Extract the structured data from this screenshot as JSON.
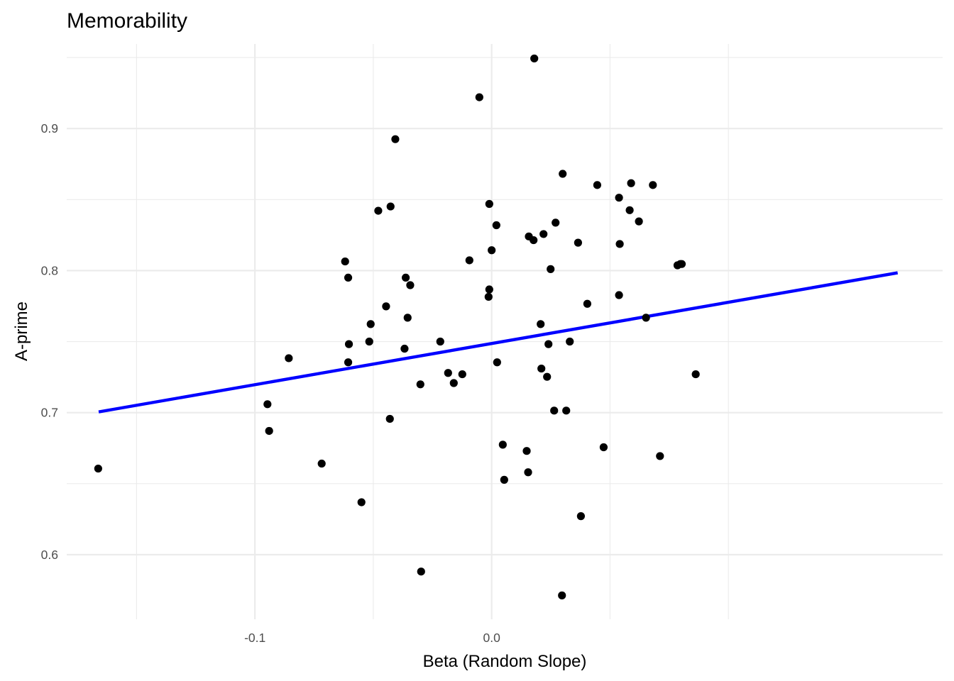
{
  "chart_data": {
    "type": "scatter",
    "title": "Memorability",
    "xlabel": "Beta (Random Slope)",
    "ylabel": "A-prime",
    "xlim": [
      -0.1795,
      0.1905
    ],
    "ylim": [
      0.5545,
      0.9595
    ],
    "x_ticks": [
      -0.1,
      0.0
    ],
    "x_tick_labels": [
      "-0.1",
      "0.0"
    ],
    "x_minor_ticks": [
      -0.15,
      -0.05,
      0.05,
      0.1
    ],
    "y_ticks": [
      0.6,
      0.7,
      0.8,
      0.9
    ],
    "y_tick_labels": [
      "0.6",
      "0.7",
      "0.8",
      "0.9"
    ],
    "y_minor_ticks": [
      0.65,
      0.75,
      0.85,
      0.95
    ],
    "grid": true,
    "point_color": "#000000",
    "trend_line": {
      "color": "#0000ff",
      "x": [
        -0.166,
        0.1715
      ],
      "y": [
        0.7005,
        0.7984
      ]
    },
    "points": [
      {
        "x": -0.1662,
        "y": 0.6606
      },
      {
        "x": -0.0947,
        "y": 0.7059
      },
      {
        "x": -0.094,
        "y": 0.6871
      },
      {
        "x": -0.0857,
        "y": 0.7383
      },
      {
        "x": -0.0718,
        "y": 0.6641
      },
      {
        "x": -0.0619,
        "y": 0.8064
      },
      {
        "x": -0.0606,
        "y": 0.795
      },
      {
        "x": -0.0606,
        "y": 0.7354
      },
      {
        "x": -0.0603,
        "y": 0.7482
      },
      {
        "x": -0.055,
        "y": 0.6369
      },
      {
        "x": -0.0517,
        "y": 0.75
      },
      {
        "x": -0.0511,
        "y": 0.7623
      },
      {
        "x": -0.0479,
        "y": 0.8421
      },
      {
        "x": -0.0446,
        "y": 0.7748
      },
      {
        "x": -0.0427,
        "y": 0.8451
      },
      {
        "x": -0.043,
        "y": 0.6956
      },
      {
        "x": -0.0407,
        "y": 0.8925
      },
      {
        "x": -0.0368,
        "y": 0.745
      },
      {
        "x": -0.0363,
        "y": 0.795
      },
      {
        "x": -0.0355,
        "y": 0.7668
      },
      {
        "x": -0.0344,
        "y": 0.7897
      },
      {
        "x": -0.0301,
        "y": 0.7199
      },
      {
        "x": -0.0298,
        "y": 0.5881
      },
      {
        "x": -0.0217,
        "y": 0.75
      },
      {
        "x": -0.0184,
        "y": 0.7279
      },
      {
        "x": -0.016,
        "y": 0.7208
      },
      {
        "x": -0.0124,
        "y": 0.727
      },
      {
        "x": -0.0094,
        "y": 0.8072
      },
      {
        "x": -0.0052,
        "y": 0.922
      },
      {
        "x": -0.0013,
        "y": 0.7815
      },
      {
        "x": -0.001,
        "y": 0.7867
      },
      {
        "x": -0.001,
        "y": 0.8469
      },
      {
        "x": 0.0,
        "y": 0.8143
      },
      {
        "x": 0.002,
        "y": 0.8319
      },
      {
        "x": 0.0023,
        "y": 0.7354
      },
      {
        "x": 0.0047,
        "y": 0.6774
      },
      {
        "x": 0.0053,
        "y": 0.6527
      },
      {
        "x": 0.0148,
        "y": 0.673
      },
      {
        "x": 0.0154,
        "y": 0.658
      },
      {
        "x": 0.0157,
        "y": 0.824
      },
      {
        "x": 0.0177,
        "y": 0.8214
      },
      {
        "x": 0.018,
        "y": 0.9493
      },
      {
        "x": 0.0207,
        "y": 0.7623
      },
      {
        "x": 0.021,
        "y": 0.731
      },
      {
        "x": 0.0219,
        "y": 0.8257
      },
      {
        "x": 0.0234,
        "y": 0.7252
      },
      {
        "x": 0.024,
        "y": 0.7482
      },
      {
        "x": 0.0249,
        "y": 0.801
      },
      {
        "x": 0.0264,
        "y": 0.7014
      },
      {
        "x": 0.027,
        "y": 0.8337
      },
      {
        "x": 0.03,
        "y": 0.8681
      },
      {
        "x": 0.0297,
        "y": 0.5713
      },
      {
        "x": 0.0315,
        "y": 0.7014
      },
      {
        "x": 0.033,
        "y": 0.75
      },
      {
        "x": 0.0365,
        "y": 0.8196
      },
      {
        "x": 0.0377,
        "y": 0.6271
      },
      {
        "x": 0.0404,
        "y": 0.7766
      },
      {
        "x": 0.0446,
        "y": 0.8602
      },
      {
        "x": 0.0473,
        "y": 0.6756
      },
      {
        "x": 0.0538,
        "y": 0.8513
      },
      {
        "x": 0.0538,
        "y": 0.7827
      },
      {
        "x": 0.0541,
        "y": 0.8187
      },
      {
        "x": 0.0583,
        "y": 0.8425
      },
      {
        "x": 0.0589,
        "y": 0.8615
      },
      {
        "x": 0.0622,
        "y": 0.8346
      },
      {
        "x": 0.0652,
        "y": 0.7668
      },
      {
        "x": 0.0681,
        "y": 0.8602
      },
      {
        "x": 0.0711,
        "y": 0.6694
      },
      {
        "x": 0.0785,
        "y": 0.8037
      },
      {
        "x": 0.0797,
        "y": 0.8046
      },
      {
        "x": 0.0803,
        "y": 0.8046
      },
      {
        "x": 0.0862,
        "y": 0.727
      }
    ]
  }
}
